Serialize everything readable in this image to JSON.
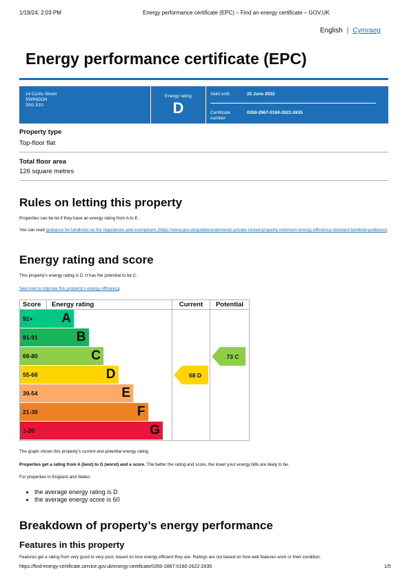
{
  "print_header": {
    "datetime": "1/19/24, 2:03 PM",
    "title": "Energy performance certificate (EPC) – Find an energy certificate – GOV.UK"
  },
  "language": {
    "english": "English",
    "welsh": "Cymraeg"
  },
  "page_title": "Energy performance certificate (EPC)",
  "summary": {
    "address_line1": "14 Curtis Street",
    "address_line2": "SWINDON",
    "address_line3": "SN1 5JU",
    "rating_label": "Energy rating",
    "rating": "D",
    "valid_until_label": "Valid until",
    "valid_until": "22 June 2032",
    "certificate_label": "Certificate number",
    "certificate_number": "0350-2867-0160-2622-2635"
  },
  "property_type": {
    "label": "Property type",
    "value": "Top-floor flat"
  },
  "floor_area": {
    "label": "Total floor area",
    "value": "126 square metres"
  },
  "letting": {
    "heading": "Rules on letting this property",
    "para1": "Properties can be let if they have an energy rating from A to E.",
    "para2_prefix": "You can read ",
    "para2_link": "guidance for landlords on the regulations and exemptions (https://www.gov.uk/guidance/domestic-private-rented-property-minimum-energy-efficiency-standard-landlord-guidance)",
    "para2_suffix": "."
  },
  "energy": {
    "heading": "Energy rating and score",
    "intro": "This property’s energy rating is D. It has the potential to be C.",
    "improve_link": "See how to improve this property’s energy efficiency",
    "improve_suffix": ".",
    "chart_caption": "The graph shows this property’s current and potential energy rating.",
    "ratings_bold": "Properties get a rating from A (best) to G (worst) and a score.",
    "ratings_rest": " The better the rating and score, the lower your energy bills are likely to be.",
    "england_wales": "For properties in England and Wales:",
    "average_rating": "the average energy rating is D",
    "average_score": "the average energy score is 60"
  },
  "chart_data": {
    "type": "table",
    "headers": {
      "score": "Score",
      "rating": "Energy rating",
      "current": "Current",
      "potential": "Potential"
    },
    "bands": [
      {
        "range": "92+",
        "letter": "A",
        "color": "#00c781"
      },
      {
        "range": "81-91",
        "letter": "B",
        "color": "#19b459"
      },
      {
        "range": "69-80",
        "letter": "C",
        "color": "#8dce46"
      },
      {
        "range": "55-68",
        "letter": "D",
        "color": "#ffd500"
      },
      {
        "range": "39-54",
        "letter": "E",
        "color": "#fcaa65"
      },
      {
        "range": "21-38",
        "letter": "F",
        "color": "#ef8023"
      },
      {
        "range": "1-20",
        "letter": "G",
        "color": "#e9153b"
      }
    ],
    "current": {
      "score": 68,
      "letter": "D",
      "label": "68  D",
      "color": "#ffd500"
    },
    "potential": {
      "score": 73,
      "letter": "C",
      "label": "73  C",
      "color": "#8dce46"
    }
  },
  "breakdown": {
    "heading": "Breakdown of property’s energy performance",
    "features_heading": "Features in this property",
    "features_text": "Features get a rating from very good to very poor, based on how energy efficient they are. Ratings are not based on how well features work or their condition."
  },
  "footer": {
    "url": "https://find-energy-certificate.service.gov.uk/energy-certificate/0350-2867-0160-2622-2635",
    "page": "1/5"
  },
  "colors": {
    "brand_blue": "#1d70b8"
  }
}
